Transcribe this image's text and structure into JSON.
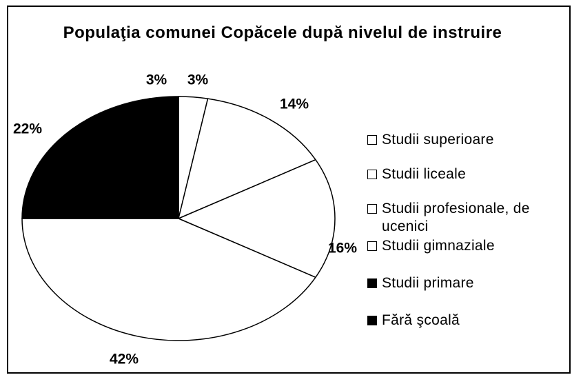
{
  "chart_data": {
    "type": "pie",
    "title": "Populaţia comunei Copăcele după nivelul de instruire",
    "categories": [
      "Studii superioare",
      "Studii liceale",
      "Studii profesionale, de ucenici",
      "Studii gimnaziale",
      "Studii primare",
      "Fără şcoală"
    ],
    "values": [
      3,
      14,
      16,
      42,
      22,
      3
    ],
    "value_labels": [
      "3%",
      "14%",
      "16%",
      "42%",
      "22%",
      "3%"
    ],
    "colors": [
      "#ffffff",
      "#ffffff",
      "#ffffff",
      "#ffffff",
      "#000000",
      "#000000"
    ]
  }
}
